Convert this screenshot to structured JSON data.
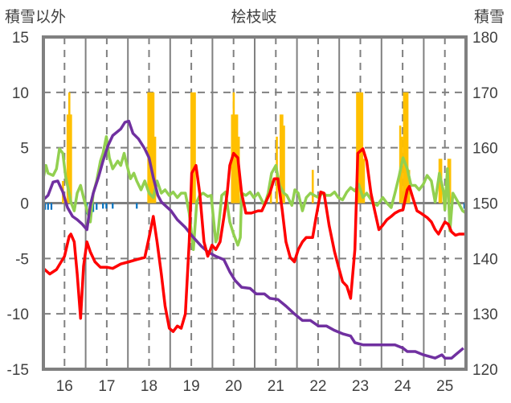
{
  "chart_data": {
    "type": "line",
    "title": "桧枝岐",
    "ylabel_left": "積雪以外",
    "ylabel_right": "積雪",
    "xlim": [
      15.5,
      25.5
    ],
    "ylim_left": [
      -15,
      15
    ],
    "ylim_right": [
      120,
      180
    ],
    "x_ticks": [
      "16",
      "17",
      "18",
      "19",
      "20",
      "21",
      "22",
      "23",
      "24",
      "25"
    ],
    "y_ticks_left": [
      "15",
      "10",
      "5",
      "0",
      "-5",
      "-10",
      "-15"
    ],
    "y_ticks_right": [
      "180",
      "170",
      "160",
      "150",
      "140",
      "130",
      "120"
    ],
    "grid": true,
    "colors": {
      "red": "#ff0000",
      "purple": "#7030a0",
      "green": "#92d050",
      "yellow": "#ffc000",
      "blue": "#0070c0",
      "grid": "#808080"
    },
    "bars_yellow": [
      [
        15.96,
        2
      ],
      [
        16.07,
        8
      ],
      [
        16.11,
        10
      ],
      [
        16.13,
        8
      ],
      [
        16.15,
        8
      ],
      [
        17.98,
        10
      ],
      [
        18.02,
        10
      ],
      [
        18.06,
        10
      ],
      [
        18.1,
        10
      ],
      [
        18.14,
        6
      ],
      [
        19.0,
        10
      ],
      [
        19.04,
        10
      ],
      [
        19.08,
        10
      ],
      [
        19.96,
        8
      ],
      [
        20.0,
        10
      ],
      [
        20.04,
        8
      ],
      [
        20.08,
        8
      ],
      [
        20.12,
        6
      ],
      [
        20.88,
        2.5
      ],
      [
        21.02,
        6
      ],
      [
        21.11,
        8
      ],
      [
        21.15,
        8
      ],
      [
        21.19,
        7
      ],
      [
        21.87,
        3
      ],
      [
        22.92,
        10
      ],
      [
        22.96,
        10
      ],
      [
        23.0,
        10
      ],
      [
        23.04,
        10
      ],
      [
        23.08,
        4
      ],
      [
        23.94,
        7
      ],
      [
        23.98,
        6
      ],
      [
        24.03,
        10
      ],
      [
        24.07,
        10
      ],
      [
        24.11,
        10
      ],
      [
        24.15,
        3
      ],
      [
        24.87,
        4
      ],
      [
        24.91,
        4
      ],
      [
        25.08,
        4
      ],
      [
        25.12,
        4
      ]
    ],
    "bars_blue": [
      [
        15.54,
        -0.6
      ],
      [
        15.61,
        -0.6
      ],
      [
        15.69,
        -0.6
      ],
      [
        16.53,
        -1.0
      ],
      [
        16.61,
        -1.0
      ],
      [
        16.68,
        -0.8
      ],
      [
        16.76,
        -0.6
      ],
      [
        16.91,
        -0.5
      ],
      [
        16.99,
        -0.5
      ],
      [
        17.14,
        -0.5
      ],
      [
        17.71,
        -0.5
      ],
      [
        25.46,
        -0.5
      ]
    ],
    "series_green": [
      [
        15.5,
        2.3
      ],
      [
        15.56,
        3.4
      ],
      [
        15.61,
        2.7
      ],
      [
        15.73,
        2.5
      ],
      [
        15.81,
        3.1
      ],
      [
        15.88,
        4.9
      ],
      [
        15.96,
        4.5
      ],
      [
        16.03,
        2.3
      ],
      [
        16.11,
        0.9
      ],
      [
        16.15,
        0.1
      ],
      [
        16.23,
        -0.7
      ],
      [
        16.3,
        0.9
      ],
      [
        16.38,
        1.6
      ],
      [
        16.45,
        0.5
      ],
      [
        16.53,
        -0.6
      ],
      [
        16.61,
        -1.7
      ],
      [
        16.68,
        0.9
      ],
      [
        16.76,
        2.0
      ],
      [
        16.85,
        3.8
      ],
      [
        16.91,
        4.5
      ],
      [
        16.99,
        6.0
      ],
      [
        17.06,
        4.1
      ],
      [
        17.14,
        3.1
      ],
      [
        17.26,
        3.8
      ],
      [
        17.33,
        3.4
      ],
      [
        17.41,
        4.5
      ],
      [
        17.48,
        3.4
      ],
      [
        17.56,
        2.2
      ],
      [
        17.64,
        2.7
      ],
      [
        17.71,
        2.0
      ],
      [
        17.81,
        1.2
      ],
      [
        17.9,
        2.0
      ],
      [
        18.0,
        0.9
      ],
      [
        18.1,
        0.5
      ],
      [
        18.19,
        2.0
      ],
      [
        18.29,
        0.9
      ],
      [
        18.38,
        1.2
      ],
      [
        18.48,
        0.7
      ],
      [
        18.57,
        1.0
      ],
      [
        18.67,
        0.5
      ],
      [
        18.76,
        0.9
      ],
      [
        18.86,
        0.9
      ],
      [
        18.95,
        -0.9
      ],
      [
        19.05,
        -4.2
      ],
      [
        19.13,
        0.1
      ],
      [
        19.2,
        0.7
      ],
      [
        19.28,
        0.9
      ],
      [
        19.39,
        0.6
      ],
      [
        19.47,
        0.7
      ],
      [
        19.58,
        -3.5
      ],
      [
        19.62,
        -3.1
      ],
      [
        19.72,
        0.7
      ],
      [
        19.81,
        1.0
      ],
      [
        19.91,
        -1.7
      ],
      [
        20.0,
        -2.8
      ],
      [
        20.1,
        -3.8
      ],
      [
        20.16,
        -3.1
      ],
      [
        20.19,
        0.9
      ],
      [
        20.29,
        0.7
      ],
      [
        20.39,
        1.0
      ],
      [
        20.48,
        0.5
      ],
      [
        20.58,
        0.9
      ],
      [
        20.73,
        -0.2
      ],
      [
        20.82,
        0.9
      ],
      [
        20.9,
        2.7
      ],
      [
        21.0,
        3.4
      ],
      [
        21.09,
        1.6
      ],
      [
        21.19,
        0.9
      ],
      [
        21.26,
        0.7
      ],
      [
        21.38,
        -0.2
      ],
      [
        21.45,
        1.2
      ],
      [
        21.53,
        0.9
      ],
      [
        21.63,
        -0.7
      ],
      [
        21.72,
        0.5
      ],
      [
        21.82,
        0.9
      ],
      [
        21.91,
        0.7
      ],
      [
        22.01,
        0.5
      ],
      [
        22.1,
        0.9
      ],
      [
        22.2,
        0.7
      ],
      [
        22.29,
        0.7
      ],
      [
        22.39,
        1.0
      ],
      [
        22.48,
        0.5
      ],
      [
        22.58,
        0.3
      ],
      [
        22.68,
        1.0
      ],
      [
        22.77,
        1.4
      ],
      [
        22.87,
        1.1
      ],
      [
        22.96,
        1.7
      ],
      [
        23.06,
        0.5
      ],
      [
        23.15,
        0.9
      ],
      [
        23.29,
        0.1
      ],
      [
        23.4,
        -0.2
      ],
      [
        23.53,
        0.5
      ],
      [
        23.63,
        0.0
      ],
      [
        23.73,
        -0.4
      ],
      [
        23.82,
        0.9
      ],
      [
        23.92,
        2.5
      ],
      [
        24.01,
        4.1
      ],
      [
        24.11,
        3.1
      ],
      [
        24.2,
        1.6
      ],
      [
        24.3,
        1.6
      ],
      [
        24.39,
        1.2
      ],
      [
        24.49,
        1.7
      ],
      [
        24.58,
        2.5
      ],
      [
        24.68,
        2.0
      ],
      [
        24.77,
        0.1
      ],
      [
        24.87,
        2.7
      ],
      [
        24.97,
        1.0
      ],
      [
        25.0,
        -0.6
      ],
      [
        25.06,
        3.1
      ],
      [
        25.12,
        -2.5
      ],
      [
        25.19,
        0.9
      ],
      [
        25.31,
        0.1
      ],
      [
        25.42,
        -0.7
      ],
      [
        25.5,
        -0.9
      ]
    ],
    "series_red": [
      [
        15.5,
        -5.9
      ],
      [
        15.65,
        -6.4
      ],
      [
        15.81,
        -6.0
      ],
      [
        16.0,
        -4.8
      ],
      [
        16.11,
        -3.0
      ],
      [
        16.15,
        -2.8
      ],
      [
        16.23,
        -3.5
      ],
      [
        16.3,
        -6.4
      ],
      [
        16.38,
        -10.4
      ],
      [
        16.45,
        -5.7
      ],
      [
        16.53,
        -3.5
      ],
      [
        16.61,
        -4.4
      ],
      [
        16.72,
        -5.3
      ],
      [
        16.85,
        -5.8
      ],
      [
        17.01,
        -5.8
      ],
      [
        17.14,
        -5.9
      ],
      [
        17.33,
        -5.5
      ],
      [
        17.52,
        -5.3
      ],
      [
        17.71,
        -5.1
      ],
      [
        17.9,
        -4.9
      ],
      [
        18.0,
        -3.1
      ],
      [
        18.1,
        -1.2
      ],
      [
        18.19,
        -3.5
      ],
      [
        18.29,
        -6.4
      ],
      [
        18.38,
        -9.3
      ],
      [
        18.48,
        -11.3
      ],
      [
        18.57,
        -11.6
      ],
      [
        18.67,
        -11.1
      ],
      [
        18.76,
        -11.3
      ],
      [
        18.86,
        -10.0
      ],
      [
        18.95,
        -3.5
      ],
      [
        19.01,
        2.7
      ],
      [
        19.11,
        3.4
      ],
      [
        19.2,
        0.9
      ],
      [
        19.3,
        -3.5
      ],
      [
        19.39,
        -4.8
      ],
      [
        19.49,
        -3.8
      ],
      [
        19.58,
        -4.2
      ],
      [
        19.68,
        -3.5
      ],
      [
        19.77,
        -1.3
      ],
      [
        19.85,
        0.9
      ],
      [
        19.91,
        3.4
      ],
      [
        20.0,
        4.5
      ],
      [
        20.1,
        4.1
      ],
      [
        20.19,
        0.9
      ],
      [
        20.29,
        -0.9
      ],
      [
        20.42,
        -0.9
      ],
      [
        20.58,
        -0.7
      ],
      [
        20.67,
        -0.7
      ],
      [
        20.86,
        0.9
      ],
      [
        20.96,
        2.2
      ],
      [
        21.05,
        2.2
      ],
      [
        21.15,
        -0.6
      ],
      [
        21.24,
        -3.5
      ],
      [
        21.34,
        -4.9
      ],
      [
        21.44,
        -5.3
      ],
      [
        21.53,
        -4.2
      ],
      [
        21.63,
        -3.5
      ],
      [
        21.72,
        -3.1
      ],
      [
        21.87,
        -3.1
      ],
      [
        21.95,
        -1.3
      ],
      [
        22.06,
        1.0
      ],
      [
        22.14,
        0.9
      ],
      [
        22.26,
        -2.0
      ],
      [
        22.39,
        -4.4
      ],
      [
        22.48,
        -5.7
      ],
      [
        22.58,
        -7.1
      ],
      [
        22.68,
        -7.5
      ],
      [
        22.77,
        -8.6
      ],
      [
        22.87,
        -4.2
      ],
      [
        22.94,
        4.5
      ],
      [
        23.06,
        4.9
      ],
      [
        23.15,
        3.8
      ],
      [
        23.25,
        0.9
      ],
      [
        23.34,
        -0.7
      ],
      [
        23.44,
        -2.4
      ],
      [
        23.53,
        -2.0
      ],
      [
        23.63,
        -1.5
      ],
      [
        23.73,
        -1.2
      ],
      [
        23.82,
        -0.9
      ],
      [
        23.92,
        -0.7
      ],
      [
        24.01,
        -0.6
      ],
      [
        24.11,
        1.2
      ],
      [
        24.16,
        1.5
      ],
      [
        24.24,
        0.5
      ],
      [
        24.34,
        -0.7
      ],
      [
        24.43,
        -0.9
      ],
      [
        24.58,
        -1.3
      ],
      [
        24.68,
        -1.7
      ],
      [
        24.77,
        -2.4
      ],
      [
        24.85,
        -2.8
      ],
      [
        24.93,
        -2.2
      ],
      [
        25.0,
        -1.7
      ],
      [
        25.08,
        -1.9
      ],
      [
        25.16,
        -2.6
      ],
      [
        25.25,
        -2.9
      ],
      [
        25.34,
        -2.8
      ],
      [
        25.46,
        -2.8
      ]
    ],
    "series_purple_right_axis": [
      [
        15.5,
        150.6
      ],
      [
        15.61,
        151.4
      ],
      [
        15.73,
        153.8
      ],
      [
        15.84,
        154.0
      ],
      [
        15.96,
        152.0
      ],
      [
        16.07,
        149.2
      ],
      [
        16.19,
        147.6
      ],
      [
        16.3,
        147.0
      ],
      [
        16.42,
        146.2
      ],
      [
        16.53,
        145.2
      ],
      [
        16.61,
        149.6
      ],
      [
        16.68,
        151.8
      ],
      [
        16.8,
        154.6
      ],
      [
        16.91,
        157.6
      ],
      [
        17.03,
        160.4
      ],
      [
        17.14,
        162.2
      ],
      [
        17.33,
        163.4
      ],
      [
        17.43,
        164.6
      ],
      [
        17.52,
        164.8
      ],
      [
        17.62,
        162.6
      ],
      [
        17.75,
        161.6
      ],
      [
        17.9,
        159.8
      ],
      [
        18.0,
        158.2
      ],
      [
        18.1,
        154.6
      ],
      [
        18.21,
        151.4
      ],
      [
        18.29,
        150.2
      ],
      [
        18.38,
        149.6
      ],
      [
        18.52,
        148.6
      ],
      [
        18.67,
        147.0
      ],
      [
        18.86,
        145.6
      ],
      [
        19.05,
        143.8
      ],
      [
        19.24,
        142.2
      ],
      [
        19.39,
        141.2
      ],
      [
        19.58,
        140.4
      ],
      [
        19.77,
        139.8
      ],
      [
        19.91,
        137.6
      ],
      [
        20.04,
        136.0
      ],
      [
        20.19,
        134.8
      ],
      [
        20.39,
        134.6
      ],
      [
        20.54,
        133.6
      ],
      [
        20.73,
        133.6
      ],
      [
        20.86,
        132.8
      ],
      [
        21.05,
        132.6
      ],
      [
        21.24,
        131.4
      ],
      [
        21.44,
        130.0
      ],
      [
        21.63,
        128.8
      ],
      [
        21.82,
        128.8
      ],
      [
        22.01,
        127.8
      ],
      [
        22.2,
        127.8
      ],
      [
        22.39,
        127.0
      ],
      [
        22.58,
        126.4
      ],
      [
        22.77,
        126.0
      ],
      [
        22.87,
        124.8
      ],
      [
        23.06,
        124.4
      ],
      [
        23.44,
        124.4
      ],
      [
        23.82,
        124.4
      ],
      [
        24.01,
        123.8
      ],
      [
        24.11,
        123.2
      ],
      [
        24.3,
        123.2
      ],
      [
        24.49,
        122.6
      ],
      [
        24.77,
        122.0
      ],
      [
        24.93,
        122.6
      ],
      [
        25.0,
        122.0
      ],
      [
        25.16,
        122.0
      ],
      [
        25.25,
        122.6
      ],
      [
        25.44,
        123.8
      ]
    ]
  }
}
